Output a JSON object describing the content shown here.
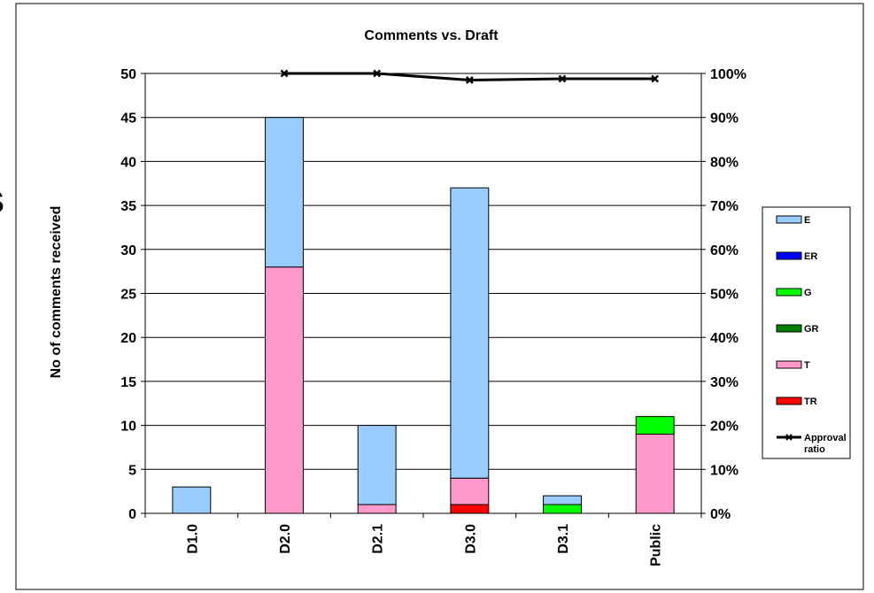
{
  "chart_data": {
    "type": "bar",
    "stacked": true,
    "title": "Comments vs. Draft",
    "ylabel": "No of comments received",
    "xlabel": "",
    "categories": [
      "D1.0",
      "D2.0",
      "D2.1",
      "D3.0",
      "D3.1",
      "Public"
    ],
    "ylim": [
      0,
      50
    ],
    "yticks": [
      0,
      5,
      10,
      15,
      20,
      25,
      30,
      35,
      40,
      45,
      50
    ],
    "y2lim": [
      0,
      100
    ],
    "y2ticks": [
      "0%",
      "10%",
      "20%",
      "30%",
      "40%",
      "50%",
      "60%",
      "70%",
      "80%",
      "90%",
      "100%"
    ],
    "grid": true,
    "legend_position": "right",
    "series": [
      {
        "name": "TR",
        "color": "#ff0000",
        "values": [
          0,
          0,
          0,
          1,
          0,
          0
        ]
      },
      {
        "name": "T",
        "color": "#ff99cc",
        "values": [
          0,
          28,
          1,
          3,
          0,
          9
        ]
      },
      {
        "name": "GR",
        "color": "#008000",
        "values": [
          0,
          0,
          0,
          0,
          0,
          0
        ]
      },
      {
        "name": "G",
        "color": "#00ff00",
        "values": [
          0,
          0,
          0,
          0,
          1,
          2
        ]
      },
      {
        "name": "ER",
        "color": "#0000ff",
        "values": [
          0,
          0,
          0,
          0,
          0,
          0
        ]
      },
      {
        "name": "E",
        "color": "#99ccff",
        "values": [
          3,
          17,
          9,
          33,
          1,
          0
        ]
      }
    ],
    "line_series": {
      "name": "Approval ratio",
      "axis": "right",
      "color": "#000000",
      "values": [
        null,
        100,
        100,
        98.5,
        98.8,
        98.8
      ]
    },
    "legend_order": [
      "E",
      "ER",
      "G",
      "GR",
      "T",
      "TR"
    ]
  },
  "side_mark": "S"
}
